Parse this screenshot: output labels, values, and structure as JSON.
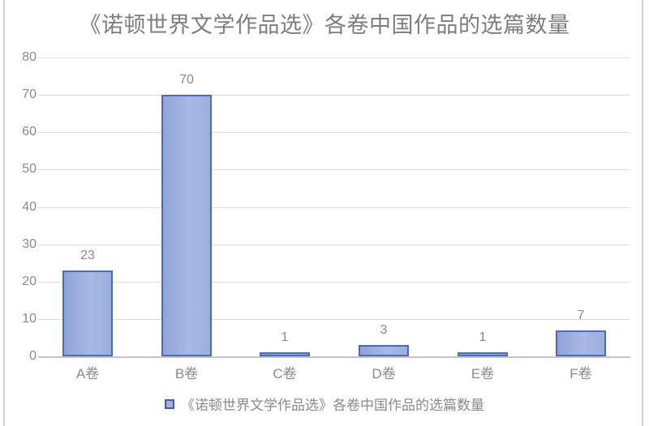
{
  "title": "《诺顿世界文学作品选》各卷中国作品的选篇数量",
  "legend": {
    "label": "《诺顿世界文学作品选》各卷中国作品的选篇数量"
  },
  "chart_data": {
    "type": "bar",
    "title": "《诺顿世界文学作品选》各卷中国作品的选篇数量",
    "categories": [
      "A卷",
      "B卷",
      "C卷",
      "D卷",
      "E卷",
      "F卷"
    ],
    "values": [
      23,
      70,
      1,
      3,
      1,
      7
    ],
    "data_labels": [
      "23",
      "70",
      "1",
      "3",
      "1",
      "7"
    ],
    "xlabel": "",
    "ylabel": "",
    "ylim": [
      0,
      80
    ],
    "yticks": [
      0,
      10,
      20,
      30,
      40,
      50,
      60,
      70,
      80
    ],
    "grid": true,
    "legend_position": "bottom",
    "legend_entries": [
      "《诺顿世界文学作品选》各卷中国作品的选篇数量"
    ],
    "colors": {
      "bar_fill": "#9fb0de",
      "bar_fill_light": "#a9b8e4",
      "bar_fill_dark": "#8fa4d6",
      "bar_border": "#4a6bbd",
      "legend_marker_border": "#3f5fae",
      "gridline": "#dcdcdc",
      "axis_line": "#c4c4c4",
      "label_text": "#8a8a8a",
      "title_text": "#7d7d7d",
      "window_border": "#cfcfcf"
    }
  }
}
